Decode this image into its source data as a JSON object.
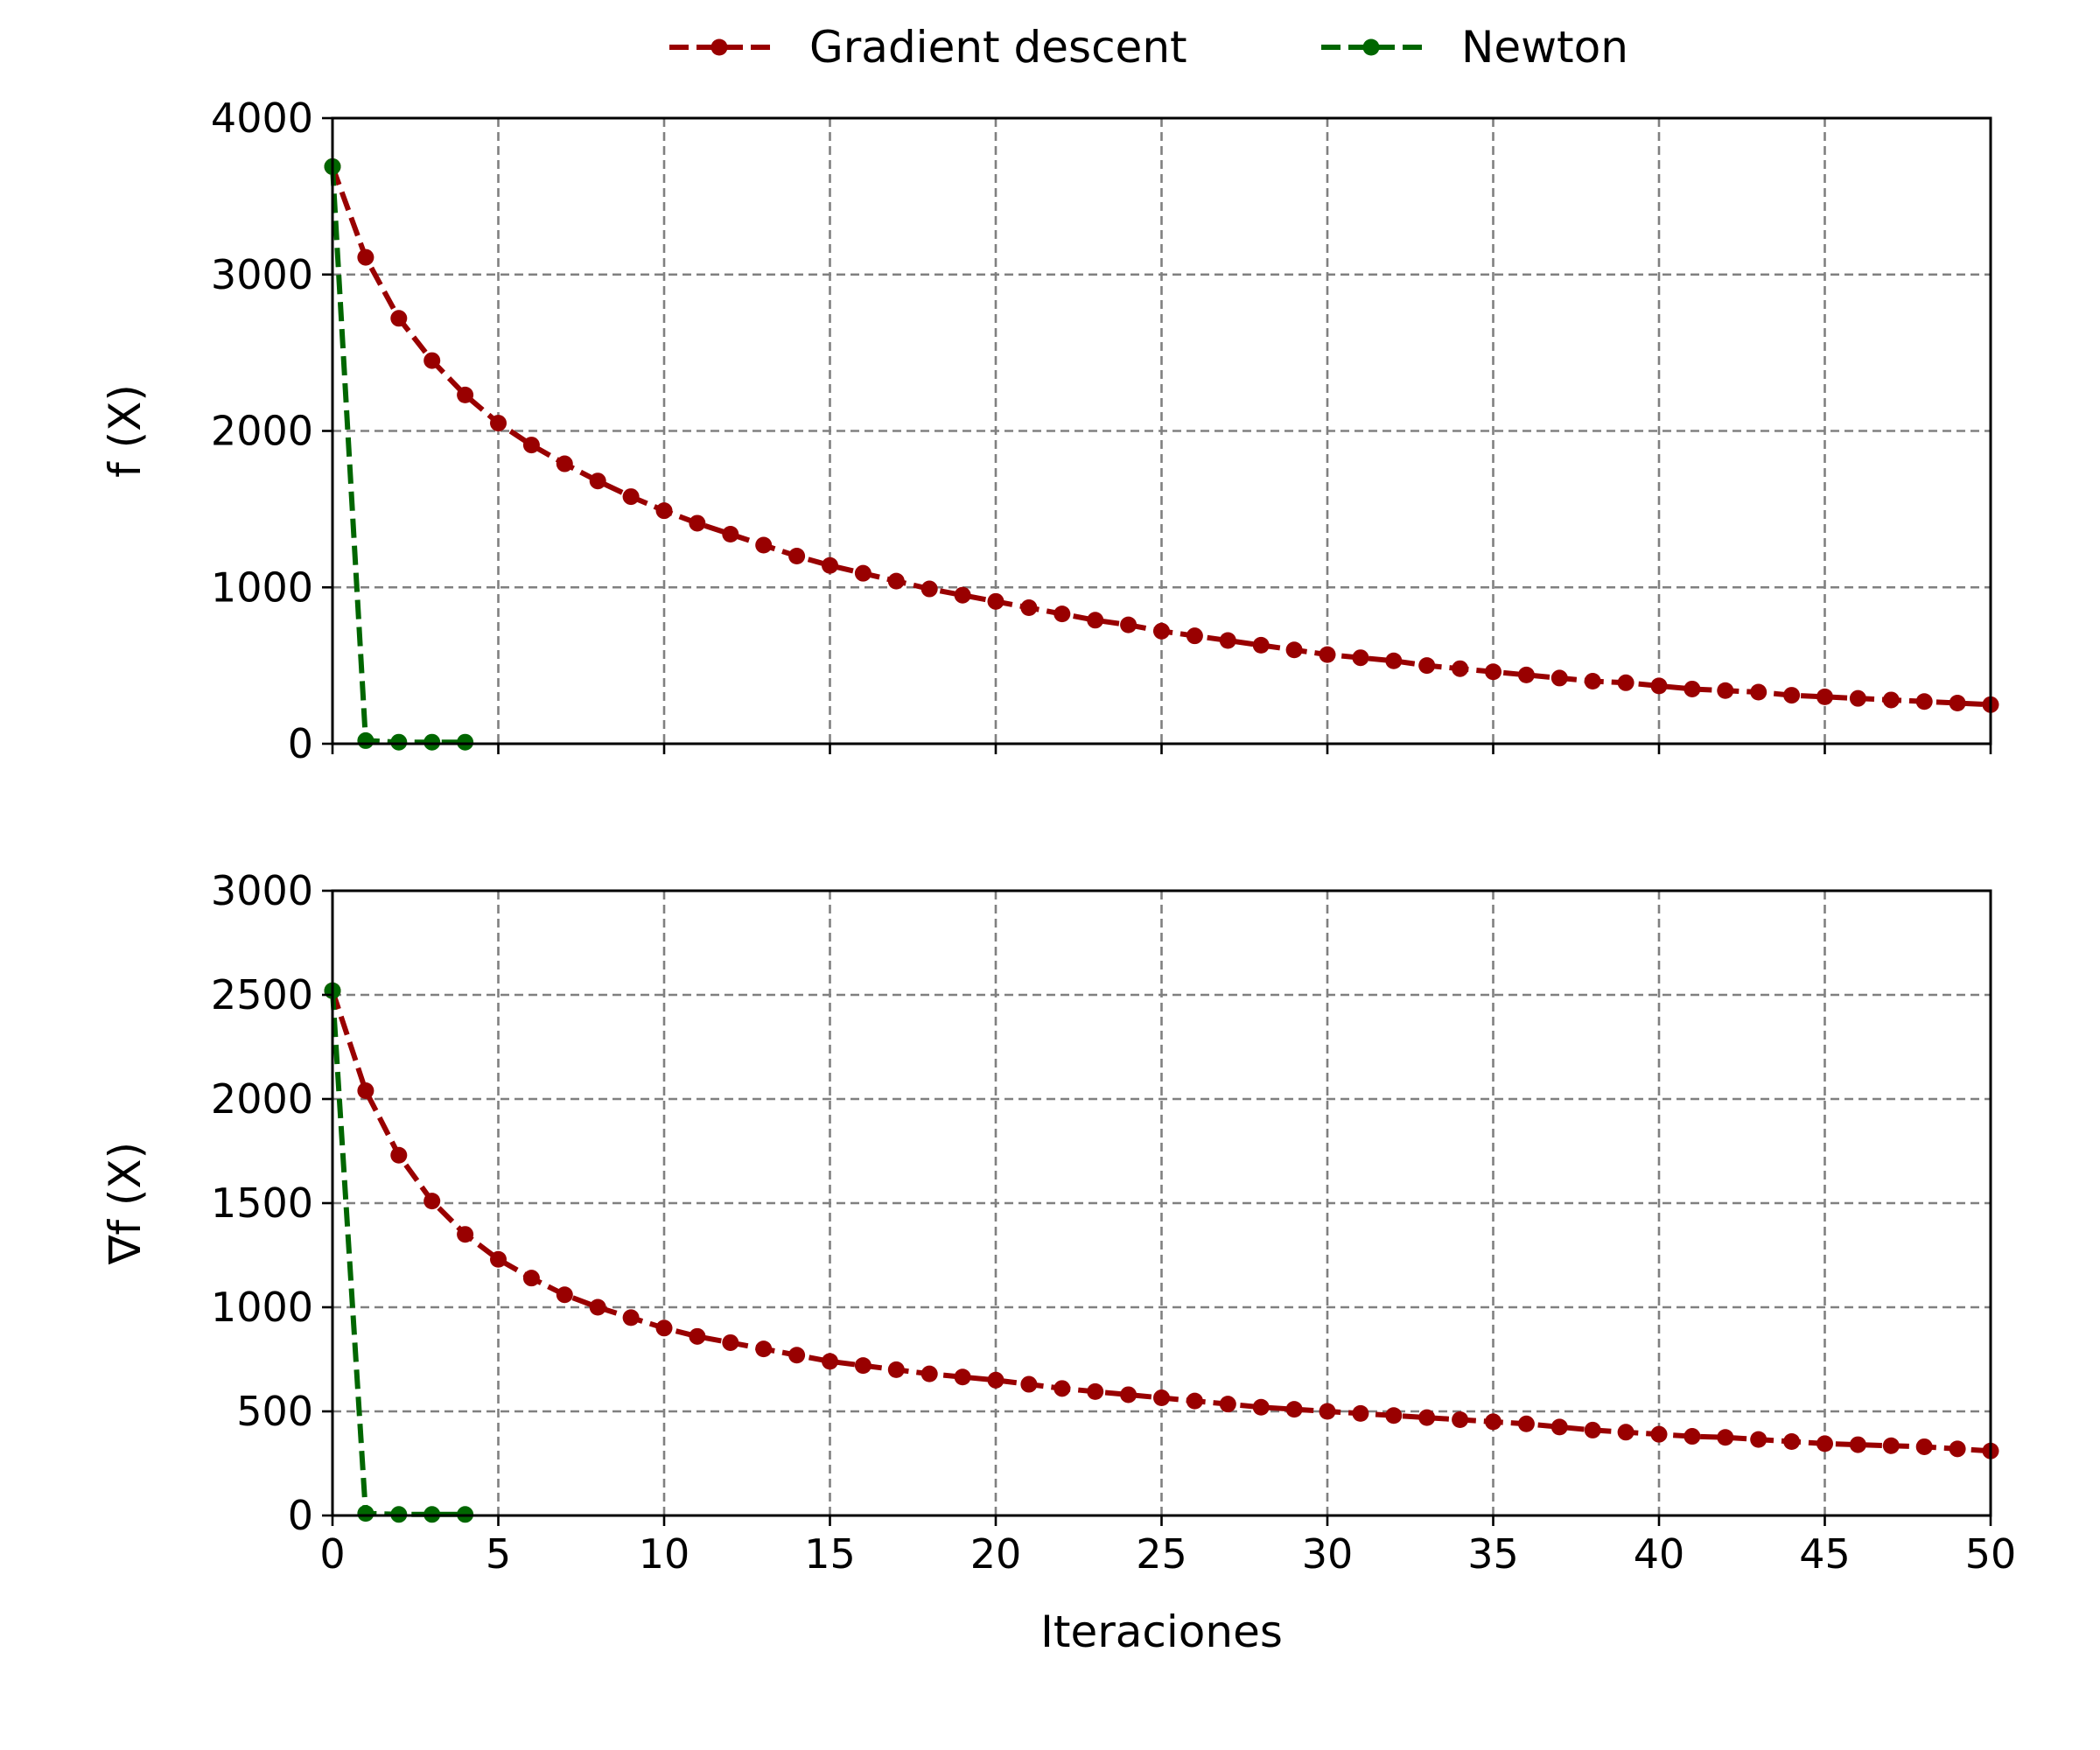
{
  "chart_data": [
    {
      "type": "line",
      "ylabel": "f (X)",
      "xlim": [
        0,
        50
      ],
      "ylim": [
        0,
        4000
      ],
      "yticks": [
        0,
        1000,
        2000,
        3000,
        4000
      ],
      "xticks": [
        0,
        5,
        10,
        15,
        20,
        25,
        30,
        35,
        40,
        45,
        50
      ],
      "grid": true,
      "show_xtick_labels": false,
      "series": [
        {
          "name": "Gradient descent",
          "color": "#990000",
          "x": [
            0,
            1,
            2,
            3,
            4,
            5,
            6,
            7,
            8,
            9,
            10,
            11,
            12,
            13,
            14,
            15,
            16,
            17,
            18,
            19,
            20,
            21,
            22,
            23,
            24,
            25,
            26,
            27,
            28,
            29,
            30,
            31,
            32,
            33,
            34,
            35,
            36,
            37,
            38,
            39,
            40,
            41,
            42,
            43,
            44,
            45,
            46,
            47,
            48,
            49,
            50
          ],
          "y": [
            3690,
            3110,
            2720,
            2450,
            2230,
            2050,
            1910,
            1790,
            1680,
            1580,
            1490,
            1410,
            1340,
            1270,
            1200,
            1140,
            1090,
            1040,
            990,
            950,
            910,
            870,
            830,
            790,
            760,
            720,
            690,
            660,
            630,
            600,
            570,
            550,
            530,
            500,
            480,
            460,
            440,
            420,
            400,
            390,
            370,
            350,
            340,
            330,
            310,
            300,
            290,
            280,
            270,
            260,
            250
          ]
        },
        {
          "name": "Newton",
          "color": "#006600",
          "x": [
            0,
            1,
            2,
            3,
            4
          ],
          "y": [
            3690,
            20,
            10,
            10,
            10
          ]
        }
      ]
    },
    {
      "type": "line",
      "ylabel": "∇f (X)",
      "xlabel": "Iteraciones",
      "xlim": [
        0,
        50
      ],
      "ylim": [
        0,
        3000
      ],
      "yticks": [
        0,
        500,
        1000,
        1500,
        2000,
        2500,
        3000
      ],
      "xticks": [
        0,
        5,
        10,
        15,
        20,
        25,
        30,
        35,
        40,
        45,
        50
      ],
      "grid": true,
      "show_xtick_labels": true,
      "series": [
        {
          "name": "Gradient descent",
          "color": "#990000",
          "x": [
            0,
            1,
            2,
            3,
            4,
            5,
            6,
            7,
            8,
            9,
            10,
            11,
            12,
            13,
            14,
            15,
            16,
            17,
            18,
            19,
            20,
            21,
            22,
            23,
            24,
            25,
            26,
            27,
            28,
            29,
            30,
            31,
            32,
            33,
            34,
            35,
            36,
            37,
            38,
            39,
            40,
            41,
            42,
            43,
            44,
            45,
            46,
            47,
            48,
            49,
            50
          ],
          "y": [
            2520,
            2040,
            1730,
            1510,
            1350,
            1230,
            1140,
            1060,
            1000,
            950,
            900,
            860,
            830,
            800,
            770,
            740,
            720,
            700,
            680,
            665,
            650,
            630,
            610,
            595,
            580,
            565,
            550,
            535,
            520,
            510,
            500,
            490,
            480,
            470,
            460,
            450,
            440,
            425,
            410,
            400,
            390,
            380,
            375,
            365,
            355,
            345,
            340,
            335,
            330,
            320,
            310
          ]
        },
        {
          "name": "Newton",
          "color": "#006600",
          "x": [
            0,
            1,
            2,
            3,
            4
          ],
          "y": [
            2520,
            10,
            5,
            5,
            5
          ]
        }
      ]
    }
  ],
  "legend": {
    "placement": "top-center",
    "entries": [
      {
        "label": "Gradient descent",
        "color": "#990000"
      },
      {
        "label": "Newton",
        "color": "#006600"
      }
    ]
  }
}
